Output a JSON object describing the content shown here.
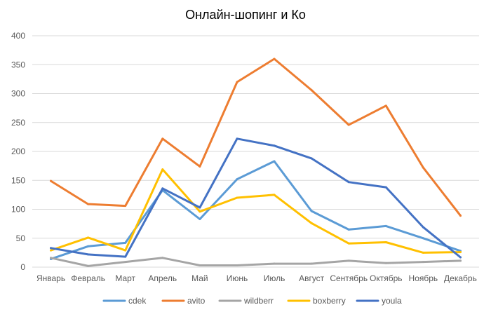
{
  "chart_data": {
    "type": "line",
    "title": "Онлайн-шопинг и Ко",
    "xlabel": "",
    "ylabel": "",
    "ylim": [
      0,
      400
    ],
    "yticks": [
      0,
      50,
      100,
      150,
      200,
      250,
      300,
      350,
      400
    ],
    "grid": true,
    "legend_position": "bottom",
    "categories": [
      "Январь",
      "Февраль",
      "Март",
      "Апрель",
      "Май",
      "Июнь",
      "Июль",
      "Август",
      "Сентябрь",
      "Октябрь",
      "Ноябрь",
      "Декабрь"
    ],
    "series": [
      {
        "name": "cdek",
        "color": "#5b9bd5",
        "values": [
          14,
          36,
          42,
          133,
          83,
          152,
          183,
          97,
          65,
          71,
          50,
          28
        ]
      },
      {
        "name": "avito",
        "color": "#ed7d31",
        "values": [
          149,
          109,
          106,
          222,
          174,
          320,
          360,
          306,
          246,
          279,
          172,
          89
        ]
      },
      {
        "name": "wildberr",
        "color": "#a5a5a5",
        "values": [
          16,
          2,
          9,
          16,
          3,
          3,
          6,
          6,
          11,
          7,
          9,
          11
        ]
      },
      {
        "name": "boxberry",
        "color": "#ffc000",
        "values": [
          29,
          51,
          29,
          169,
          96,
          120,
          125,
          76,
          41,
          43,
          25,
          26
        ]
      },
      {
        "name": "youla",
        "color": "#4472c4",
        "values": [
          33,
          22,
          18,
          136,
          103,
          222,
          210,
          188,
          147,
          138,
          69,
          17
        ]
      }
    ]
  }
}
